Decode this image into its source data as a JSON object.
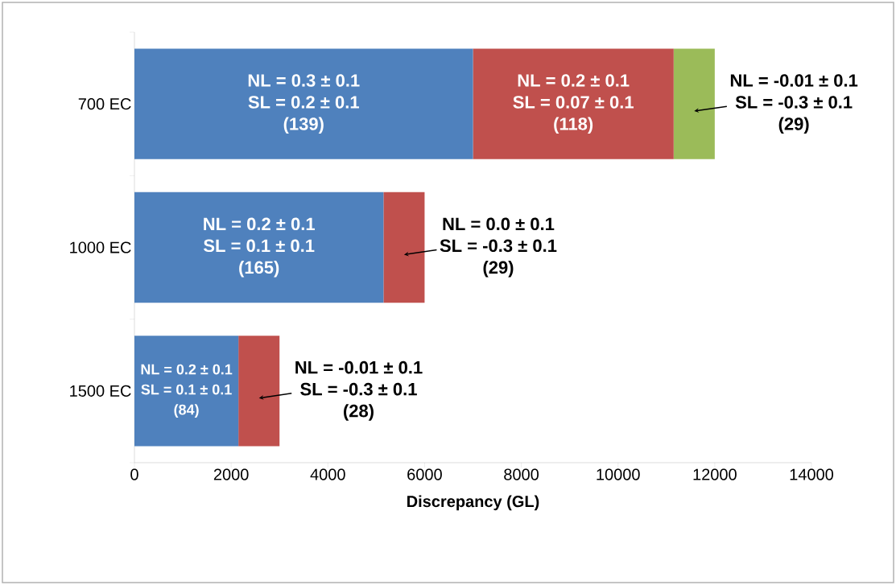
{
  "chart_data": {
    "type": "bar",
    "orientation": "horizontal",
    "stacked": true,
    "categories": [
      "700 EC",
      "1000 EC",
      "1500 EC"
    ],
    "series": [
      {
        "color": "#4f81bd",
        "values": [
          7000,
          5150,
          2150
        ]
      },
      {
        "color": "#c0504d",
        "values": [
          4150,
          850,
          850
        ]
      },
      {
        "color": "#9bbb59",
        "values": [
          850,
          null,
          null
        ]
      }
    ],
    "xlabel": "Discrepancy (GL)",
    "xlim": [
      0,
      14000
    ],
    "xticks": [
      0,
      2000,
      4000,
      6000,
      8000,
      10000,
      12000,
      14000
    ],
    "annotations": [
      "NL = 0.3 ± 0.1",
      "SL = 0.2 ± 0.1",
      "(139)",
      "NL = 0.2 ± 0.1",
      "SL = 0.07 ± 0.1",
      "(118)",
      "NL = -0.01 ± 0.1",
      "SL = -0.3 ± 0.1",
      "(29)",
      "NL = 0.2 ± 0.1",
      "SL = 0.1 ± 0.1",
      "(165)",
      "NL = 0.0 ± 0.1",
      "SL = -0.3 ± 0.1",
      "(29)",
      "NL = 0.2 ± 0.1",
      "SL = 0.1 ± 0.1",
      "(84)",
      "NL = -0.01 ± 0.1",
      "SL = -0.3 ± 0.1",
      "(28)"
    ]
  }
}
